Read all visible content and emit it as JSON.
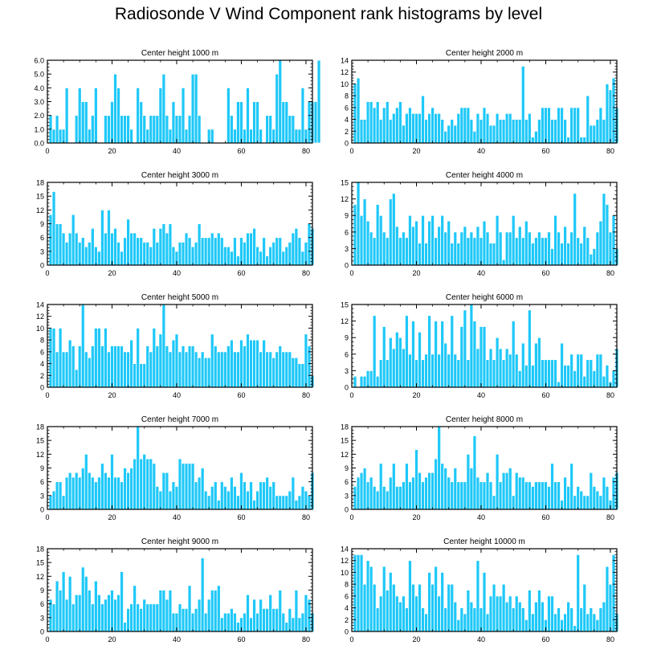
{
  "figure": {
    "title": "Radiosonde V Wind Component rank histograms by level",
    "bar_color": "#1EC8F8",
    "bar_edge_color": "#FFFFFF",
    "frame_color": "#000000"
  },
  "chart_data": [
    {
      "type": "bar",
      "title": "Center height 1000 m",
      "ylim": [
        0,
        6
      ],
      "yticks": [
        "0.0",
        "1.0",
        "2.0",
        "3.0",
        "4.0",
        "5.0",
        "6.0"
      ],
      "xlim": [
        0,
        82
      ],
      "xticks": [
        "0",
        "20",
        "40",
        "60",
        "80"
      ],
      "values": [
        2,
        1,
        2,
        1,
        1,
        4,
        0,
        0,
        2,
        4,
        3,
        3,
        1,
        2,
        4,
        0,
        0,
        2,
        2,
        3,
        5,
        4,
        2,
        2,
        2,
        1,
        0,
        4,
        3,
        2,
        1,
        2,
        2,
        2,
        4,
        5,
        2,
        1,
        3,
        2,
        2,
        4,
        1,
        2,
        5,
        5,
        2,
        0,
        0,
        1,
        1,
        0,
        0,
        0,
        0,
        4,
        2,
        1,
        3,
        3,
        1,
        4,
        1,
        3,
        3,
        1,
        0,
        2,
        2,
        1,
        5,
        6,
        3,
        3,
        2,
        2,
        1,
        1,
        4,
        1,
        3,
        3,
        3,
        6
      ]
    },
    {
      "type": "bar",
      "title": "Center height 2000 m",
      "ylim": [
        0,
        14
      ],
      "yticks": [
        "0",
        "2",
        "4",
        "6",
        "8",
        "10",
        "12",
        "14"
      ],
      "xlim": [
        0,
        82
      ],
      "xticks": [
        "0",
        "20",
        "40",
        "60",
        "80"
      ],
      "values": [
        10,
        11,
        4,
        4,
        7,
        7,
        6,
        7,
        4,
        6,
        7,
        4,
        5,
        6,
        7,
        3,
        5,
        6,
        5,
        5,
        5,
        8,
        4,
        5,
        6,
        5,
        5,
        4,
        2,
        3,
        4,
        3,
        5,
        6,
        6,
        6,
        4,
        2,
        5,
        4,
        6,
        5,
        3,
        3,
        5,
        4,
        4,
        5,
        5,
        4,
        4,
        4,
        13,
        4,
        5,
        1,
        2,
        4,
        6,
        6,
        6,
        4,
        4,
        6,
        6,
        4,
        1,
        6,
        6,
        6,
        1,
        1,
        8,
        3,
        3,
        4,
        6,
        4,
        10,
        9,
        11,
        6
      ]
    },
    {
      "type": "bar",
      "title": "Center height 3000 m",
      "ylim": [
        0,
        18
      ],
      "yticks": [
        "0",
        "3",
        "6",
        "9",
        "12",
        "15",
        "18"
      ],
      "xlim": [
        0,
        82
      ],
      "xticks": [
        "0",
        "20",
        "40",
        "60",
        "80"
      ],
      "values": [
        11,
        16,
        9,
        9,
        7,
        5,
        7,
        11,
        7,
        5,
        6,
        4,
        5,
        8,
        4,
        3,
        12,
        7,
        12,
        7,
        8,
        5,
        3,
        6,
        10,
        7,
        7,
        6,
        6,
        5,
        5,
        4,
        8,
        5,
        8,
        9,
        7,
        9,
        4,
        3,
        5,
        5,
        7,
        6,
        4,
        5,
        9,
        6,
        6,
        6,
        7,
        6,
        7,
        6,
        4,
        4,
        3,
        6,
        2,
        6,
        5,
        7,
        7,
        8,
        4,
        3,
        6,
        2,
        4,
        5,
        6,
        6,
        3,
        4,
        5,
        7,
        8,
        6,
        3,
        5,
        9,
        8
      ]
    },
    {
      "type": "bar",
      "title": "Center height 4000 m",
      "ylim": [
        0,
        15
      ],
      "yticks": [
        "0",
        "3",
        "6",
        "9",
        "12",
        "15"
      ],
      "xlim": [
        0,
        82
      ],
      "xticks": [
        "0",
        "20",
        "40",
        "60",
        "80"
      ],
      "values": [
        11,
        15,
        9,
        12,
        8,
        6,
        5,
        11,
        9,
        6,
        5,
        12,
        13,
        7,
        5,
        6,
        5,
        9,
        7,
        8,
        4,
        9,
        4,
        8,
        9,
        5,
        7,
        9,
        6,
        8,
        4,
        6,
        4,
        6,
        7,
        5,
        6,
        5,
        7,
        5,
        8,
        6,
        4,
        4,
        9,
        6,
        1,
        6,
        6,
        9,
        5,
        7,
        5,
        8,
        6,
        4,
        5,
        6,
        5,
        5,
        6,
        3,
        9,
        6,
        4,
        7,
        4,
        6,
        13,
        5,
        4,
        7,
        5,
        2,
        3,
        6,
        8,
        13,
        11,
        6,
        9,
        3
      ]
    },
    {
      "type": "bar",
      "title": "Center height 5000 m",
      "ylim": [
        0,
        14
      ],
      "yticks": [
        "0",
        "2",
        "4",
        "6",
        "8",
        "10",
        "12",
        "14"
      ],
      "xlim": [
        0,
        82
      ],
      "xticks": [
        "0",
        "20",
        "40",
        "60",
        "80"
      ],
      "values": [
        10,
        10,
        6,
        10,
        6,
        6,
        8,
        7,
        3,
        7,
        14,
        6,
        5,
        7,
        10,
        10,
        7,
        10,
        6,
        7,
        7,
        7,
        7,
        6,
        6,
        8,
        4,
        10,
        4,
        4,
        7,
        6,
        10,
        7,
        9,
        14,
        7,
        6,
        8,
        9,
        6,
        7,
        6,
        7,
        7,
        6,
        5,
        6,
        5,
        5,
        9,
        7,
        6,
        6,
        6,
        7,
        8,
        6,
        6,
        8,
        7,
        9,
        8,
        8,
        8,
        6,
        8,
        6,
        6,
        5,
        6,
        7,
        6,
        6,
        6,
        5,
        5,
        4,
        4,
        9,
        7,
        2
      ]
    },
    {
      "type": "bar",
      "title": "Center height 6000 m",
      "ylim": [
        0,
        15
      ],
      "yticks": [
        "0",
        "3",
        "6",
        "9",
        "12",
        "15"
      ],
      "xlim": [
        0,
        82
      ],
      "xticks": [
        "0",
        "20",
        "40",
        "60",
        "80"
      ],
      "values": [
        2,
        0,
        2,
        2,
        3,
        3,
        13,
        2,
        5,
        11,
        5,
        9,
        7,
        10,
        9,
        7,
        13,
        6,
        12,
        5,
        10,
        5,
        6,
        13,
        6,
        12,
        6,
        12,
        8,
        6,
        13,
        6,
        5,
        11,
        14,
        5,
        15,
        12,
        7,
        11,
        11,
        5,
        7,
        5,
        9,
        7,
        5,
        7,
        6,
        12,
        6,
        3,
        8,
        4,
        14,
        4,
        8,
        9,
        5,
        5,
        5,
        5,
        5,
        1,
        8,
        4,
        4,
        6,
        3,
        6,
        6,
        2,
        5,
        5,
        3,
        6,
        6,
        2,
        4,
        1,
        3,
        7
      ]
    },
    {
      "type": "bar",
      "title": "Center height 7000 m",
      "ylim": [
        0,
        18
      ],
      "yticks": [
        "0",
        "3",
        "6",
        "9",
        "12",
        "15",
        "18"
      ],
      "xlim": [
        0,
        82
      ],
      "xticks": [
        "0",
        "20",
        "40",
        "60",
        "80"
      ],
      "values": [
        3,
        4,
        6,
        6,
        3,
        7,
        8,
        7,
        8,
        7,
        9,
        12,
        8,
        7,
        6,
        7,
        10,
        8,
        7,
        12,
        7,
        7,
        6,
        9,
        8,
        9,
        11,
        18,
        11,
        12,
        11,
        11,
        10,
        5,
        4,
        8,
        8,
        4,
        6,
        5,
        11,
        10,
        10,
        10,
        10,
        6,
        7,
        9,
        4,
        3,
        5,
        6,
        2,
        6,
        5,
        4,
        7,
        5,
        3,
        8,
        6,
        4,
        6,
        2,
        4,
        6,
        6,
        7,
        5,
        6,
        3,
        3,
        3,
        3,
        4,
        7,
        2,
        3,
        5,
        4,
        3,
        8
      ]
    },
    {
      "type": "bar",
      "title": "Center height 8000 m",
      "ylim": [
        0,
        18
      ],
      "yticks": [
        "0",
        "3",
        "6",
        "9",
        "12",
        "15",
        "18"
      ],
      "xlim": [
        0,
        82
      ],
      "xticks": [
        "0",
        "20",
        "40",
        "60",
        "80"
      ],
      "values": [
        5,
        7,
        8,
        9,
        6,
        7,
        5,
        4,
        10,
        5,
        4,
        7,
        10,
        5,
        5,
        6,
        10,
        6,
        7,
        13,
        8,
        6,
        7,
        8,
        8,
        11,
        18,
        10,
        9,
        7,
        6,
        9,
        6,
        6,
        6,
        12,
        9,
        16,
        7,
        6,
        6,
        8,
        6,
        3,
        12,
        6,
        8,
        8,
        9,
        3,
        8,
        7,
        7,
        6,
        6,
        5,
        6,
        6,
        6,
        6,
        5,
        10,
        6,
        6,
        2,
        7,
        5,
        10,
        3,
        5,
        4,
        3,
        3,
        8,
        5,
        4,
        3,
        7,
        5,
        2,
        7,
        8
      ]
    },
    {
      "type": "bar",
      "title": "Center height 9000 m",
      "ylim": [
        0,
        18
      ],
      "yticks": [
        "0",
        "3",
        "6",
        "9",
        "12",
        "15",
        "18"
      ],
      "xlim": [
        0,
        82
      ],
      "xticks": [
        "0",
        "20",
        "40",
        "60",
        "80"
      ],
      "values": [
        7,
        6,
        11,
        9,
        13,
        7,
        12,
        6,
        8,
        8,
        14,
        12,
        9,
        6,
        11,
        8,
        6,
        7,
        8,
        9,
        7,
        8,
        13,
        2,
        5,
        6,
        10,
        6,
        5,
        7,
        6,
        6,
        6,
        6,
        9,
        9,
        7,
        9,
        4,
        4,
        6,
        5,
        5,
        10,
        4,
        5,
        7,
        16,
        4,
        7,
        9,
        9,
        10,
        3,
        4,
        4,
        5,
        4,
        2,
        3,
        4,
        8,
        3,
        7,
        4,
        7,
        5,
        5,
        8,
        5,
        5,
        9,
        4,
        2,
        5,
        3,
        9,
        3,
        4,
        8,
        7,
        4
      ]
    },
    {
      "type": "bar",
      "title": "Center height 10000 m",
      "ylim": [
        0,
        14
      ],
      "yticks": [
        "0",
        "2",
        "4",
        "6",
        "8",
        "10",
        "12",
        "14"
      ],
      "xlim": [
        0,
        82
      ],
      "xticks": [
        "0",
        "20",
        "40",
        "60",
        "80"
      ],
      "values": [
        13,
        13,
        13,
        8,
        12,
        11,
        8,
        4,
        6,
        11,
        7,
        10,
        8,
        6,
        5,
        6,
        4,
        12,
        8,
        6,
        8,
        4,
        3,
        10,
        8,
        11,
        6,
        10,
        4,
        8,
        8,
        5,
        2,
        4,
        3,
        7,
        5,
        4,
        12,
        4,
        10,
        3,
        6,
        8,
        6,
        6,
        8,
        5,
        6,
        4,
        6,
        5,
        4,
        2,
        7,
        3,
        5,
        7,
        5,
        2,
        6,
        6,
        3,
        4,
        2,
        3,
        5,
        4,
        1,
        13,
        4,
        8,
        3,
        4,
        3,
        2,
        4,
        5,
        11,
        8,
        13,
        3
      ]
    }
  ]
}
